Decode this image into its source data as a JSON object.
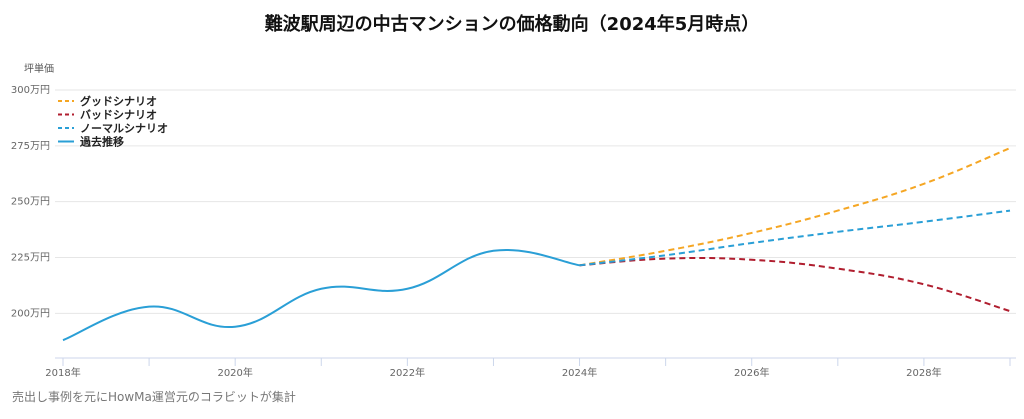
{
  "chart_data": {
    "type": "line",
    "title": "難波駅周辺の中古マンションの価格動向（2024年5月時点）",
    "ylabel": "坪単価",
    "xlim": [
      2018,
      2029
    ],
    "ylim": [
      180,
      300
    ],
    "yticks": [
      200,
      225,
      250,
      275,
      300
    ],
    "ytick_labels": [
      "200万円",
      "225万円",
      "250万円",
      "275万円",
      "300万円"
    ],
    "xticks": [
      2018,
      2020,
      2022,
      2024,
      2026,
      2028
    ],
    "xtick_labels": [
      "2018年",
      "2020年",
      "2022年",
      "2024年",
      "2026年",
      "2028年"
    ],
    "grid": true,
    "legend_position": "top-left",
    "series": [
      {
        "name": "グッドシナリオ",
        "color": "#f5a623",
        "style": "dashed",
        "x": [
          2024,
          2025,
          2026,
          2027,
          2028,
          2029
        ],
        "y": [
          221.5,
          228,
          236,
          246,
          258,
          274
        ]
      },
      {
        "name": "バッドシナリオ",
        "color": "#b01e2f",
        "style": "dashed",
        "x": [
          2024,
          2025,
          2026,
          2027,
          2028,
          2029
        ],
        "y": [
          221.5,
          224.5,
          224,
          220,
          213,
          201
        ]
      },
      {
        "name": "ノーマルシナリオ",
        "color": "#2a9fd6",
        "style": "dashed",
        "x": [
          2024,
          2025,
          2026,
          2027,
          2028,
          2029
        ],
        "y": [
          221.5,
          226,
          231.5,
          236.5,
          241,
          246
        ]
      },
      {
        "name": "過去推移",
        "color": "#2a9fd6",
        "style": "solid",
        "x": [
          2018,
          2019,
          2020,
          2021,
          2022,
          2023,
          2024
        ],
        "y": [
          188,
          203,
          194,
          211,
          211,
          228,
          221.5
        ]
      }
    ]
  },
  "footer": "売出し事例を元にHowMa運営元のコラビットが集計"
}
